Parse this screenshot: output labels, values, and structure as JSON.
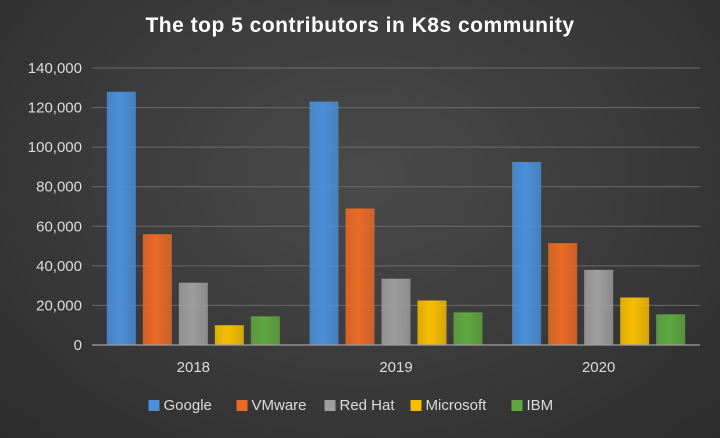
{
  "chart_data": {
    "type": "bar",
    "title": "The top 5 contributors in K8s community",
    "xlabel": "",
    "ylabel": "",
    "categories": [
      "2018",
      "2019",
      "2020"
    ],
    "ylim": [
      0,
      140000
    ],
    "yticks": [
      "0",
      "20,000",
      "40,000",
      "60,000",
      "80,000",
      "100,000",
      "120,000",
      "140,000"
    ],
    "grid": true,
    "legend_position": "bottom",
    "series": [
      {
        "name": "Google",
        "color": "#4a8fd8",
        "values": [
          128000,
          123000,
          92500
        ]
      },
      {
        "name": "VMware",
        "color": "#ea6a24",
        "values": [
          56000,
          69000,
          51500
        ]
      },
      {
        "name": "Red Hat",
        "color": "#9e9e9e",
        "values": [
          31500,
          33500,
          38000
        ]
      },
      {
        "name": "Microsoft",
        "color": "#f7be00",
        "values": [
          10000,
          22500,
          24000
        ]
      },
      {
        "name": "IBM",
        "color": "#5fa841",
        "values": [
          14500,
          16500,
          15500
        ]
      }
    ]
  }
}
